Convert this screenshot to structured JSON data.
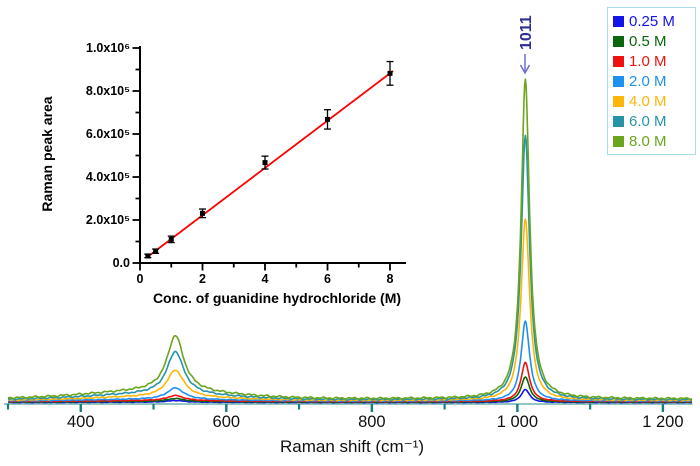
{
  "figure": {
    "background": "#ffffff"
  },
  "legend": {
    "border_color": "#aadcee",
    "items": [
      {
        "label": "0.25 M",
        "color": "#1414e6"
      },
      {
        "label": "0.5 M",
        "color": "#0b660b"
      },
      {
        "label": "1.0 M",
        "color": "#ee1111"
      },
      {
        "label": "2.0 M",
        "color": "#2090ee"
      },
      {
        "label": "4.0 M",
        "color": "#feb60a"
      },
      {
        "label": "6.0 M",
        "color": "#2694a8"
      },
      {
        "label": "8.0 M",
        "color": "#6ba51e"
      }
    ]
  },
  "annotation": {
    "text": "1011",
    "color": "#2d2d9a",
    "arrow_color": "#6d6dd2"
  },
  "chart_data": [
    {
      "id": "main-raman-spectra",
      "type": "line",
      "title": "",
      "xlabel": "Raman shift (cm⁻¹)",
      "ylabel": "",
      "xlim": [
        300,
        1240
      ],
      "grid": false,
      "legend_position": "top-right",
      "x_major_ticks": [
        400,
        600,
        800,
        1000,
        1200
      ],
      "x_major_tick_labels": [
        "400",
        "600",
        "800",
        "1 000",
        "1 200"
      ],
      "x_minor_ticks": [
        300,
        500,
        700,
        900,
        1100
      ],
      "axis_color": "#6fb3ae",
      "tick_color": "#157f7c",
      "annotated_peak_cm": 1011,
      "peaks_cm": [
        530,
        1011
      ],
      "peak_hwhm_cm": [
        14,
        7
      ],
      "broad_bg": {
        "center_cm": 505,
        "sigma_cm": 95
      },
      "heights_unit": "arbitrary intensity (screen px above baseline)",
      "series": [
        {
          "name": "0.25 M",
          "color": "#1414e6",
          "peak530_h": 1.7,
          "peak1011_h": 13,
          "bg_h": 0.3,
          "baseline": 1.5
        },
        {
          "name": "0.5 M",
          "color": "#0b660b",
          "peak530_h": 3.0,
          "peak1011_h": 25,
          "bg_h": 0.5,
          "baseline": 2.0
        },
        {
          "name": "1.0 M",
          "color": "#ee1111",
          "peak530_h": 5.2,
          "peak1011_h": 39,
          "bg_h": 0.8,
          "baseline": 2.5
        },
        {
          "name": "2.0 M",
          "color": "#2090ee",
          "peak530_h": 11.5,
          "peak1011_h": 80,
          "bg_h": 1.6,
          "baseline": 3.0
        },
        {
          "name": "4.0 M",
          "color": "#feb60a",
          "peak530_h": 27,
          "peak1011_h": 182,
          "bg_h": 3.5,
          "baseline": 3.5
        },
        {
          "name": "6.0 M",
          "color": "#2694a8",
          "peak530_h": 43,
          "peak1011_h": 264,
          "bg_h": 5.5,
          "baseline": 4.2
        },
        {
          "name": "8.0 M",
          "color": "#6ba51e",
          "peak530_h": 56,
          "peak1011_h": 319,
          "bg_h": 7.5,
          "baseline": 5.2
        }
      ]
    },
    {
      "id": "inset-calibration",
      "type": "scatter",
      "title": "",
      "xlabel": "Conc. of guanidine hydrochloride (M)",
      "ylabel": "Raman peak area",
      "xlim": [
        0,
        8.5
      ],
      "ylim": [
        0,
        1050000
      ],
      "grid": false,
      "x_major_ticks": [
        0,
        2,
        4,
        6,
        8
      ],
      "x_major_tick_labels": [
        "0",
        "2",
        "4",
        "6",
        "8"
      ],
      "x_minor_ticks": [
        1,
        3,
        5,
        7
      ],
      "y_major_ticks": [
        0,
        200000,
        400000,
        600000,
        800000,
        1000000
      ],
      "y_major_tick_labels": [
        "0.0",
        "2.0x10⁵",
        "4.0x10⁵",
        "6.0x10⁵",
        "8.0x10⁵",
        "1.0x10⁶"
      ],
      "y_minor_ticks": [
        100000,
        300000,
        500000,
        700000,
        900000
      ],
      "axis_color": "#000000",
      "points": {
        "marker": "square",
        "marker_color": "#000000",
        "x": [
          0.25,
          0.5,
          1,
          2,
          4,
          6,
          8
        ],
        "y": [
          33000,
          55000,
          110000,
          231000,
          467000,
          668000,
          882000
        ],
        "yerr": [
          8000,
          10000,
          15000,
          20000,
          30000,
          45000,
          55000
        ]
      },
      "fit_line": {
        "color": "#ff0000",
        "x1": 0.2,
        "y1": 24000,
        "x2": 8.1,
        "y2": 893000
      }
    }
  ]
}
